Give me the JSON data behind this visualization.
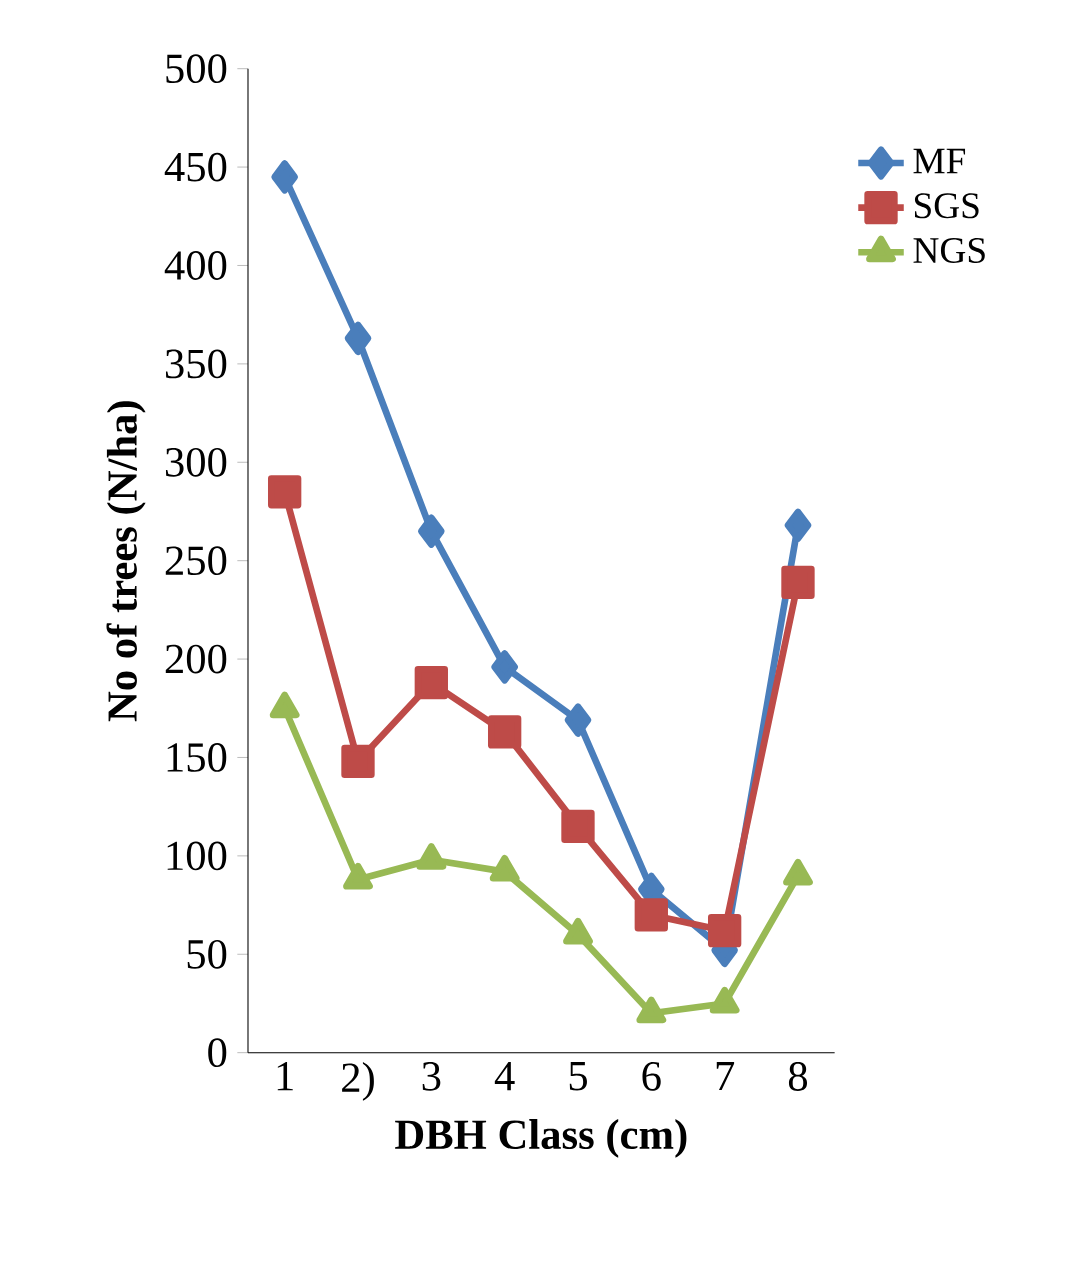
{
  "chart_data": {
    "type": "line",
    "xlabel": "DBH Class (cm)",
    "ylabel": "No of trees  (N/ha)",
    "categories": [
      "1",
      "2)",
      "3",
      "4",
      "5",
      "6",
      "7",
      "8"
    ],
    "series": [
      {
        "name": "MF",
        "color": "#4a7ebb",
        "marker": "diamond",
        "values": [
          445,
          363,
          265,
          196,
          169,
          83,
          52,
          268
        ]
      },
      {
        "name": "SGS",
        "color": "#be4b48",
        "marker": "square",
        "values": [
          285,
          148,
          188,
          163,
          115,
          70,
          62,
          239
        ]
      },
      {
        "name": "NGS",
        "color": "#98b954",
        "marker": "triangle",
        "values": [
          175,
          88,
          98,
          92,
          60,
          20,
          25,
          90
        ]
      }
    ],
    "ylim": [
      0,
      500
    ],
    "yticks": [
      0,
      50,
      100,
      150,
      200,
      250,
      300,
      350,
      400,
      450,
      500
    ],
    "grid": false,
    "legend": "top right"
  }
}
